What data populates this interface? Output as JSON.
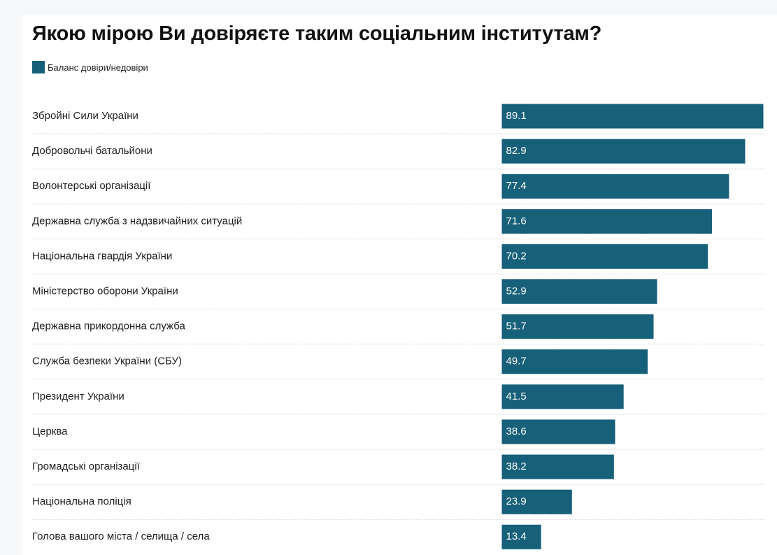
{
  "chart_data": {
    "type": "bar",
    "orientation": "horizontal",
    "title": "Якою мірою Ви довіряєте таким соціальним інститутам?",
    "categories": [
      "Збройні Сили України",
      "Добровольчі батальйони",
      "Волонтерські організації",
      "Державна служба з надзвичайних ситуацій",
      "Національна гвардія України",
      "Міністерство оборони України",
      "Державна прикордонна служба",
      "Служба безпеки України (СБУ)",
      "Президент України",
      "Церква",
      "Громадські організації",
      "Національна поліція",
      "Голова вашого міста / селища / села"
    ],
    "series": [
      {
        "name": "Баланс довіри/недовіри",
        "values": [
          89.1,
          82.9,
          77.4,
          71.6,
          70.2,
          52.9,
          51.7,
          49.7,
          41.5,
          38.6,
          38.2,
          23.9,
          13.4
        ]
      }
    ],
    "xlim": [
      0,
      89.1
    ],
    "grid": false,
    "legend_position": "top-left",
    "data_labels": "inside-bar-start"
  },
  "colors": {
    "bar": "#17607a",
    "bar_label": "#ffffff",
    "separator": "#d4d4d4"
  }
}
